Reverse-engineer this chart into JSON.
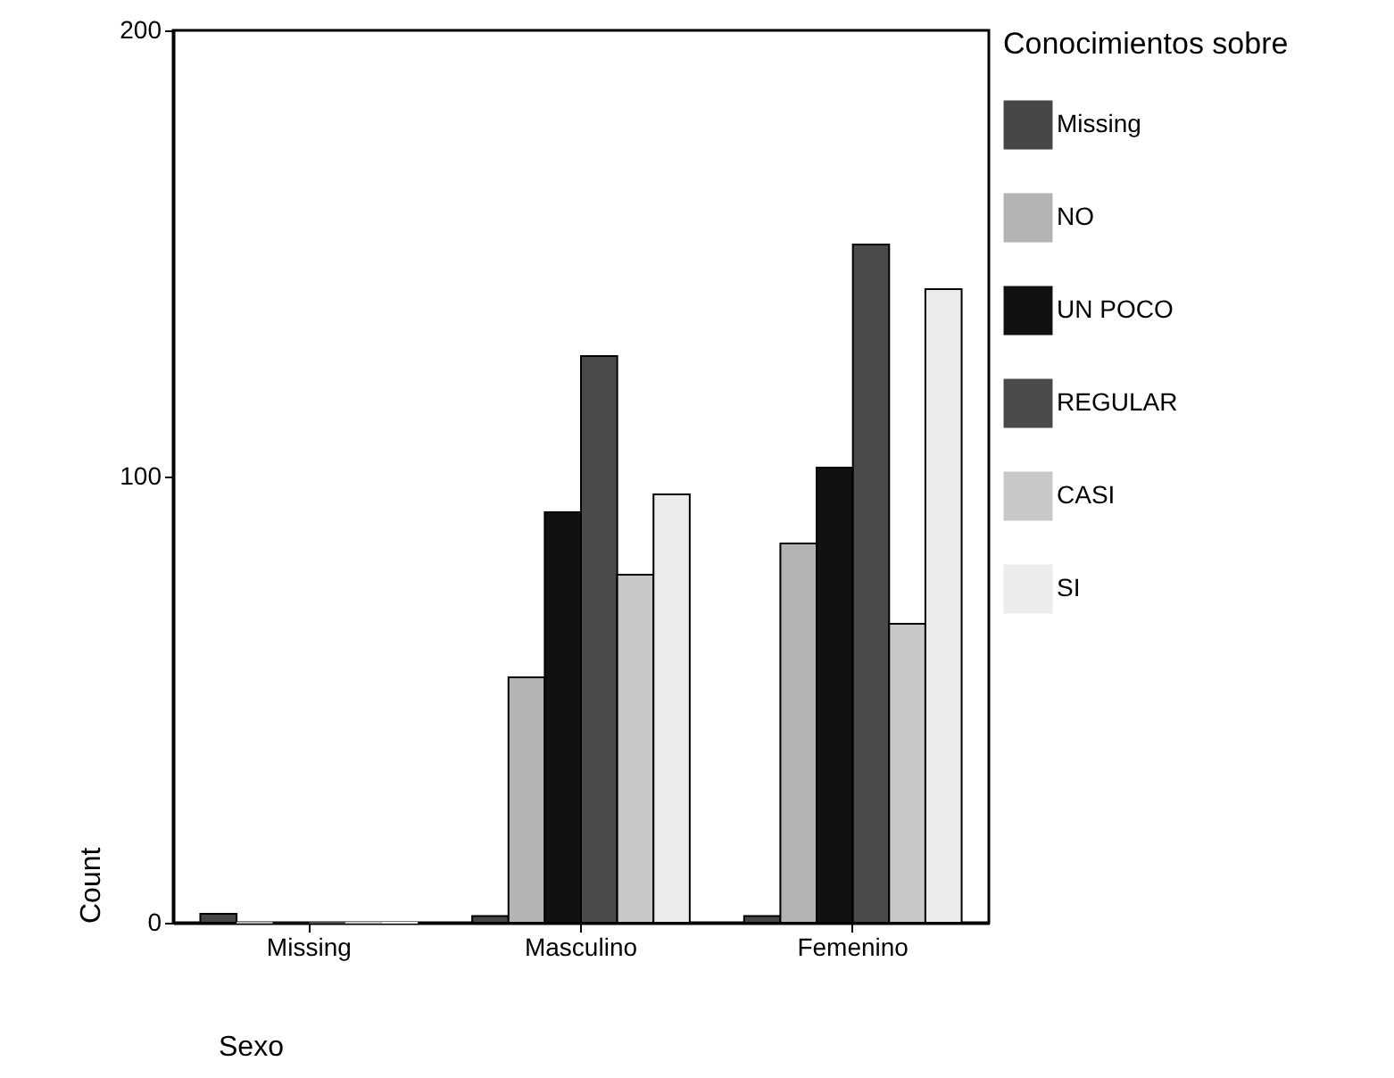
{
  "chart_data": {
    "type": "bar",
    "xlabel": "Sexo",
    "ylabel": "Count",
    "legend_title": "Conocimientos sobre",
    "categories": [
      "Missing",
      "Masculino",
      "Femenino"
    ],
    "series": [
      {
        "name": "Missing",
        "color": "#474747",
        "values": [
          2,
          1.5,
          1.5
        ]
      },
      {
        "name": "NO",
        "color": "#b4b4b4",
        "values": [
          0,
          55,
          85
        ]
      },
      {
        "name": "UN POCO",
        "color": "#111111",
        "values": [
          0,
          92,
          102
        ]
      },
      {
        "name": "REGULAR",
        "color": "#4a4a4a",
        "values": [
          0,
          127,
          152
        ]
      },
      {
        "name": "CASI",
        "color": "#c8c8c8",
        "values": [
          0,
          78,
          67
        ]
      },
      {
        "name": "SI",
        "color": "#ececec",
        "values": [
          0,
          96,
          142
        ]
      }
    ],
    "ylim": [
      0,
      200
    ],
    "yticks": [
      0,
      100,
      200
    ],
    "grid": false,
    "legend": "right"
  }
}
